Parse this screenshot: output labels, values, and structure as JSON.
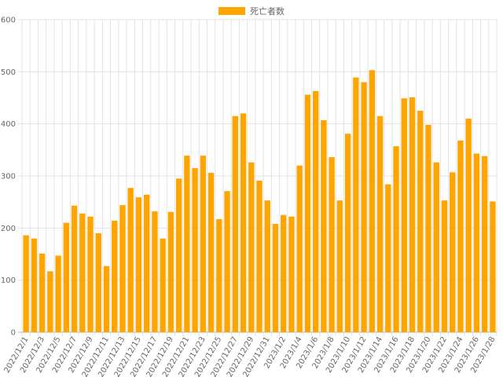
{
  "legend": {
    "label": "死亡者数",
    "color": "#ffa500"
  },
  "chart_data": {
    "type": "bar",
    "title": "",
    "xlabel": "",
    "ylabel": "",
    "ylim": [
      0,
      600
    ],
    "yticks": [
      0,
      100,
      200,
      300,
      400,
      500,
      600
    ],
    "grid": true,
    "legend_position": "top-center",
    "series": [
      {
        "name": "死亡者数",
        "color": "#ffa500",
        "values": [
          186,
          180,
          151,
          117,
          147,
          210,
          243,
          228,
          222,
          190,
          127,
          214,
          244,
          277,
          259,
          264,
          232,
          180,
          231,
          295,
          339,
          315,
          339,
          306,
          217,
          271,
          415,
          420,
          326,
          291,
          253,
          208,
          225,
          222,
          320,
          456,
          463,
          407,
          336,
          253,
          381,
          489,
          480,
          503,
          415,
          284,
          357,
          449,
          451,
          425,
          398,
          326,
          253,
          307,
          368,
          410,
          343,
          338,
          251
        ]
      }
    ],
    "categories": [
      "2022/12/1",
      "2022/12/2",
      "2022/12/3",
      "2022/12/4",
      "2022/12/5",
      "2022/12/6",
      "2022/12/7",
      "2022/12/8",
      "2022/12/9",
      "2022/12/10",
      "2022/12/11",
      "2022/12/12",
      "2022/12/13",
      "2022/12/14",
      "2022/12/15",
      "2022/12/16",
      "2022/12/17",
      "2022/12/18",
      "2022/12/19",
      "2022/12/20",
      "2022/12/21",
      "2022/12/22",
      "2022/12/23",
      "2022/12/24",
      "2022/12/25",
      "2022/12/26",
      "2022/12/27",
      "2022/12/28",
      "2022/12/29",
      "2022/12/30",
      "2022/12/31",
      "2023/1/1",
      "2023/1/2",
      "2023/1/3",
      "2023/1/4",
      "2023/1/5",
      "2023/1/6",
      "2023/1/7",
      "2023/1/8",
      "2023/1/9",
      "2023/1/10",
      "2023/1/11",
      "2023/1/12",
      "2023/1/13",
      "2023/1/14",
      "2023/1/15",
      "2023/1/16",
      "2023/1/17",
      "2023/1/18",
      "2023/1/19",
      "2023/1/20",
      "2023/1/21",
      "2023/1/22",
      "2023/1/23",
      "2023/1/24",
      "2023/1/25",
      "2023/1/26",
      "2023/1/27",
      "2023/1/28"
    ],
    "x_tick_labels": [
      "2022/12/1",
      "2022/12/3",
      "2022/12/5",
      "2022/12/7",
      "2022/12/9",
      "2022/12/11",
      "2022/12/13",
      "2022/12/15",
      "2022/12/17",
      "2022/12/19",
      "2022/12/21",
      "2022/12/23",
      "2022/12/25",
      "2022/12/27",
      "2022/12/29",
      "2022/12/31",
      "2023/1/2",
      "2023/1/4",
      "2023/1/6",
      "2023/1/8",
      "2023/1/10",
      "2023/1/12",
      "2023/1/14",
      "2023/1/16",
      "2023/1/18",
      "2023/1/20",
      "2023/1/22",
      "2023/1/24",
      "2023/1/26",
      "2023/1/28"
    ]
  }
}
